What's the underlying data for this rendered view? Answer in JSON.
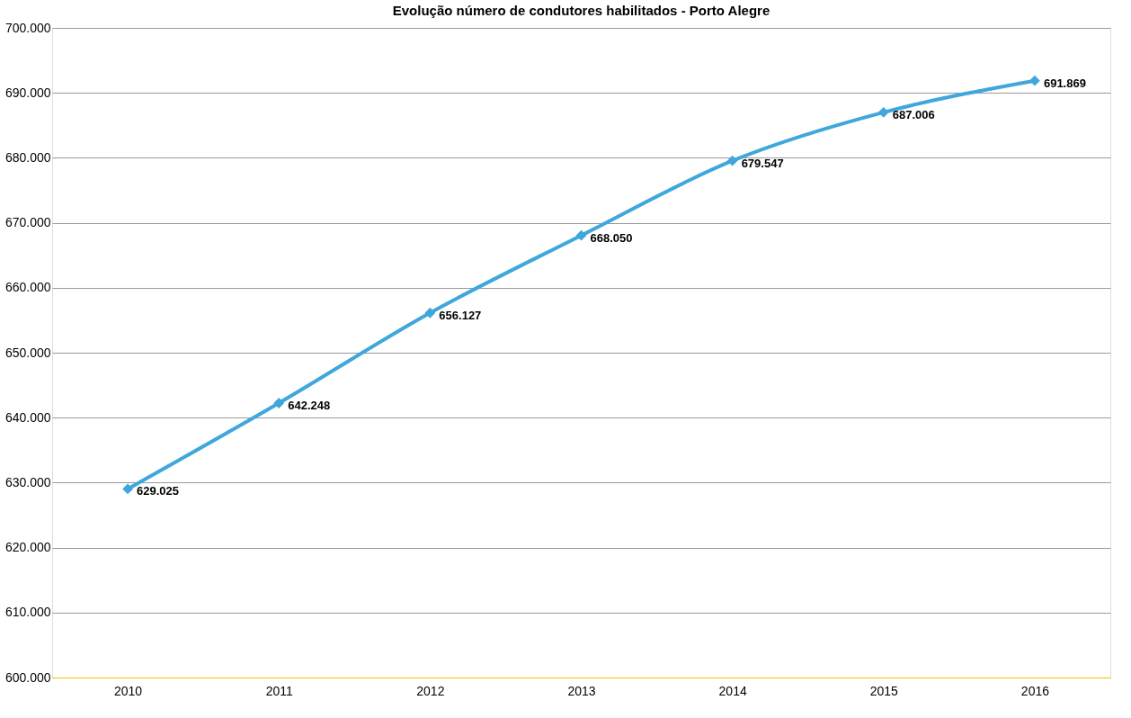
{
  "chart_data": {
    "type": "line",
    "title": "Evolução número de condutores habilitados - Porto Alegre",
    "categories": [
      "2010",
      "2011",
      "2012",
      "2013",
      "2014",
      "2015",
      "2016"
    ],
    "series": [
      {
        "color": "#3fa7dc",
        "values": [
          629025,
          642248,
          656127,
          668050,
          679547,
          687006,
          691869
        ],
        "value_labels": [
          "629.025",
          "642.248",
          "656.127",
          "668.050",
          "679.547",
          "687.006",
          "691.869"
        ]
      }
    ],
    "ylim": [
      600000,
      700000
    ],
    "yticks": [
      {
        "value": 600000,
        "label": "600.000"
      },
      {
        "value": 610000,
        "label": "610.000"
      },
      {
        "value": 620000,
        "label": "620.000"
      },
      {
        "value": 630000,
        "label": "630.000"
      },
      {
        "value": 640000,
        "label": "640.000"
      },
      {
        "value": 650000,
        "label": "650.000"
      },
      {
        "value": 660000,
        "label": "660.000"
      },
      {
        "value": 670000,
        "label": "670.000"
      },
      {
        "value": 680000,
        "label": "680.000"
      },
      {
        "value": 690000,
        "label": "690.000"
      },
      {
        "value": 700000,
        "label": "700.000"
      }
    ],
    "grid": "y",
    "marker": "diamond",
    "line_style": "solid",
    "legend": false
  }
}
